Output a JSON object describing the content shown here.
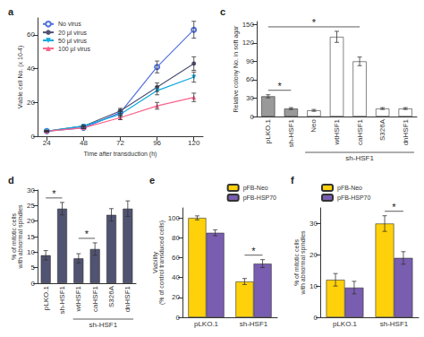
{
  "chart_data": [
    {
      "type": "line",
      "title": "a",
      "x_label": "Time after transduction (h)",
      "y_label": "Viable cell No. (x 10-4)",
      "x": [
        24,
        48,
        72,
        96,
        120
      ],
      "xlim": [
        18,
        126
      ],
      "xticks": [
        24,
        48,
        72,
        96,
        120
      ],
      "ylim": [
        0,
        70
      ],
      "yticks": [
        0,
        20,
        40,
        60
      ],
      "grid": false,
      "legend": "upper left",
      "series": [
        {
          "name": "No virus",
          "marker": "circle-open",
          "values": [
            3,
            5,
            14,
            41,
            63
          ],
          "errors": [
            0.3,
            0.5,
            1.5,
            3.5,
            5
          ]
        },
        {
          "name": "20 μl virus",
          "marker": "circle",
          "values": [
            3,
            6,
            15,
            29,
            43
          ],
          "errors": [
            0.3,
            0.5,
            1.5,
            2.5,
            4
          ]
        },
        {
          "name": "50 μl virus",
          "marker": "triangle-down",
          "values": [
            3,
            6,
            13,
            27,
            35
          ],
          "errors": [
            0.3,
            0.5,
            1.5,
            2.5,
            3
          ]
        },
        {
          "name": "100 μl virus",
          "marker": "triangle",
          "values": [
            3,
            5,
            11,
            18,
            23
          ],
          "errors": [
            0.3,
            0.5,
            1.2,
            2.0,
            2.5
          ]
        }
      ]
    },
    {
      "type": "bar",
      "title": "c",
      "y_label": "Relative colony No. in soft agar",
      "categories": [
        "pLKO.1",
        "sh-HSF1",
        "Neo",
        "wtHSF1",
        "caHSF1",
        "S326A",
        "dnHSF1"
      ],
      "values": [
        33,
        13,
        10,
        130,
        90,
        13,
        13
      ],
      "errors": [
        2.5,
        1.5,
        1.5,
        9,
        7,
        1.5,
        1.5
      ],
      "colors": [
        "#999999",
        "#999999",
        "#ffffff",
        "#ffffff",
        "#ffffff",
        "#ffffff",
        "#ffffff"
      ],
      "ylim": [
        0,
        155
      ],
      "yticks": [
        0,
        30,
        60,
        90,
        120,
        150
      ],
      "grid": false,
      "annotations": [
        {
          "text": "*",
          "from": "pLKO.1",
          "to": "sh-HSF1",
          "position": "above"
        },
        {
          "text": "*",
          "from": "pLKO.1",
          "to": "caHSF1",
          "position": "above"
        },
        {
          "text": "sh-HSF1",
          "from": "Neo",
          "to": "dnHSF1",
          "position": "below"
        }
      ]
    },
    {
      "type": "bar",
      "title": "d",
      "y_label": "% of mitotic cells\nwith abnormal spindles",
      "categories": [
        "pLKO.1",
        "sh-HSF1",
        "wtHSF1",
        "caHSF1",
        "S326A",
        "dnHSF1"
      ],
      "values": [
        9,
        24,
        8,
        11,
        22,
        24
      ],
      "errors": [
        1.5,
        2,
        1.5,
        2,
        2,
        2.5
      ],
      "ylim": [
        0,
        30
      ],
      "yticks": [
        0,
        5,
        10,
        15,
        20,
        25,
        30
      ],
      "grid": false,
      "annotations": [
        {
          "text": "*",
          "from": "pLKO.1",
          "to": "sh-HSF1",
          "position": "above"
        },
        {
          "text": "*",
          "from": "wtHSF1",
          "to": "caHSF1",
          "position": "above"
        },
        {
          "text": "sh-HSF1",
          "from": "wtHSF1",
          "to": "dnHSF1",
          "position": "below"
        }
      ]
    },
    {
      "type": "bar",
      "title": "e",
      "y_label": "Viability\n(% of control transduced cells)",
      "categories": [
        "pLKO.1",
        "sh-HSF1"
      ],
      "series": [
        {
          "name": "pFB-Neo",
          "values": [
            100,
            36
          ],
          "errors": [
            2,
            3
          ]
        },
        {
          "name": "pFB-HSP70",
          "values": [
            85,
            54
          ],
          "errors": [
            3,
            4
          ]
        }
      ],
      "ylim": [
        0,
        110
      ],
      "yticks": [
        0,
        20,
        40,
        60,
        80,
        100
      ],
      "grid": false,
      "legend": "upper right",
      "annotations": [
        {
          "text": "*",
          "from": {
            "category": "sh-HSF1",
            "series": "pFB-Neo"
          },
          "to": {
            "category": "sh-HSF1",
            "series": "pFB-HSP70"
          },
          "position": "above"
        }
      ]
    },
    {
      "type": "bar",
      "title": "f",
      "y_label": "% of mitotic cells\nwith abnormal spindles",
      "categories": [
        "pLKO.1",
        "sh-HSF1"
      ],
      "series": [
        {
          "name": "pFB-Neo",
          "values": [
            12,
            30
          ],
          "errors": [
            2,
            2.5
          ]
        },
        {
          "name": "pFB-HSP70",
          "values": [
            9.5,
            19
          ],
          "errors": [
            2,
            2
          ]
        }
      ],
      "ylim": [
        0,
        35
      ],
      "yticks": [
        0,
        10,
        20,
        30
      ],
      "grid": false,
      "legend": "upper left",
      "annotations": [
        {
          "text": "*",
          "from": {
            "category": "sh-HSF1",
            "series": "pFB-Neo"
          },
          "to": {
            "category": "sh-HSF1",
            "series": "pFB-HSP70"
          },
          "position": "above"
        }
      ]
    }
  ]
}
